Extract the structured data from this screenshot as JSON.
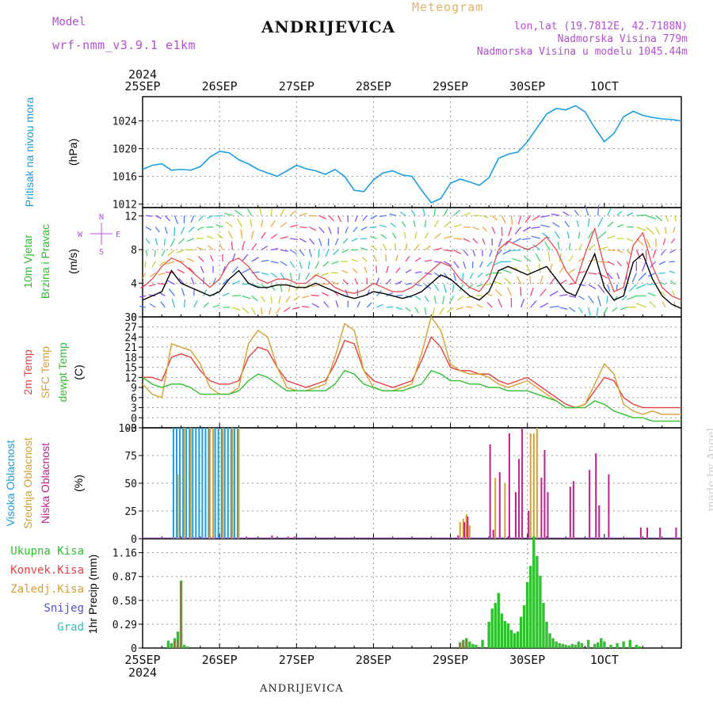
{
  "header": {
    "model_label": "Model",
    "model_name": "wrf-nmm_v3.9.1 e1km",
    "station": "ANDRIJEVICA",
    "meteogram_title": "Meteogram",
    "lonlat": "lon,lat (19.7812E, 42.7188N)",
    "elevation": "Nadmorska Visina 779m",
    "model_elevation": "Nadmorska Visina u modelu 1045.44m"
  },
  "footer": {
    "station": "ANDRIJEVICA",
    "watermark": "made by Angel"
  },
  "time_axis": {
    "year": "2024",
    "ticks": [
      "25SEP",
      "26SEP",
      "27SEP",
      "28SEP",
      "29SEP",
      "30SEP",
      "1OCT"
    ]
  },
  "colors": {
    "pressure": "#1a9fe0",
    "temp2m": "#e84040",
    "sfc": "#d8a030",
    "dewpt": "#30c030",
    "cloud_high": "#1a9fe0",
    "cloud_mid": "#d8a030",
    "cloud_low": "#c02090",
    "rain_total": "#30c030",
    "rain_conv": "#e84040",
    "snow": "#5050d0",
    "hail": "#30c0c0"
  },
  "chart_data": [
    {
      "type": "line",
      "name": "pressure",
      "ylabel_main": "Pritisak na nivou mora",
      "ylabel_unit": "(hPa)",
      "ylim": [
        1011.5,
        1027.5
      ],
      "yticks": [
        1012,
        1016,
        1020,
        1024
      ],
      "x": [
        0,
        3,
        6,
        9,
        12,
        15,
        18,
        21,
        24,
        27,
        30,
        33,
        36,
        39,
        42,
        45,
        48,
        51,
        54,
        57,
        60,
        63,
        66,
        69,
        72,
        75,
        78,
        81,
        84,
        87,
        90,
        93,
        96,
        99,
        102,
        105,
        108,
        111,
        114,
        117,
        120,
        123,
        126,
        129,
        132,
        135,
        138,
        141,
        144,
        147,
        150,
        153,
        156,
        159,
        162,
        165,
        168
      ],
      "series": [
        {
          "values": [
            1017.0,
            1017.6,
            1017.8,
            1016.9,
            1017.0,
            1016.9,
            1017.4,
            1018.8,
            1019.6,
            1019.4,
            1018.4,
            1017.8,
            1017.0,
            1016.5,
            1016.0,
            1016.8,
            1017.6,
            1017.1,
            1016.8,
            1016.3,
            1017.0,
            1016.0,
            1014.0,
            1013.8,
            1015.5,
            1016.5,
            1016.8,
            1016.2,
            1016.0,
            1014.0,
            1012.2,
            1012.8,
            1015.0,
            1015.6,
            1015.2,
            1014.7,
            1015.8,
            1018.6,
            1019.2,
            1019.5,
            1021.0,
            1023.0,
            1025.0,
            1025.8,
            1025.6,
            1026.2,
            1025.3,
            1023.0,
            1021.0,
            1022.2,
            1024.6,
            1025.4,
            1024.8,
            1024.5,
            1024.3,
            1024.2,
            1024.0
          ]
        }
      ]
    },
    {
      "type": "scatter",
      "name": "wind",
      "ylabel_main": "10m Vjetar Brzina i Pravac",
      "ylabel_unit": "(m/s)",
      "compass": [
        "N",
        "E",
        "S",
        "W"
      ],
      "ylim": [
        0,
        13
      ],
      "yticks": [
        0,
        4,
        8,
        12
      ],
      "x": [
        0,
        3,
        6,
        9,
        12,
        15,
        18,
        21,
        24,
        27,
        30,
        33,
        36,
        39,
        42,
        45,
        48,
        51,
        54,
        57,
        60,
        63,
        66,
        69,
        72,
        75,
        78,
        81,
        84,
        87,
        90,
        93,
        96,
        99,
        102,
        105,
        108,
        111,
        114,
        117,
        120,
        123,
        126,
        129,
        132,
        135,
        138,
        141,
        144,
        147,
        150,
        153,
        156,
        159,
        162,
        165,
        168
      ],
      "series": [
        {
          "name": "speed",
          "values": [
            2.0,
            2.5,
            3.0,
            5.5,
            4.0,
            3.5,
            3.0,
            2.5,
            3.0,
            4.5,
            5.5,
            4.0,
            3.5,
            3.5,
            3.8,
            3.8,
            3.5,
            3.5,
            4.0,
            3.5,
            3.0,
            2.5,
            2.2,
            2.5,
            3.0,
            2.8,
            2.5,
            2.2,
            2.5,
            3.0,
            4.0,
            5.0,
            4.5,
            3.5,
            2.5,
            2.0,
            3.0,
            5.5,
            6.0,
            5.5,
            5.0,
            5.5,
            6.0,
            4.5,
            3.0,
            2.5,
            5.0,
            7.5,
            3.5,
            2.0,
            2.5,
            6.5,
            7.5,
            4.5,
            2.5,
            1.5,
            1.0
          ]
        },
        {
          "name": "gust",
          "values": [
            3.5,
            4.5,
            6.0,
            7.0,
            6.5,
            5.5,
            4.5,
            3.5,
            4.5,
            6.5,
            7.0,
            6.0,
            4.5,
            4.0,
            4.5,
            4.5,
            4.0,
            4.0,
            5.0,
            4.5,
            3.5,
            3.0,
            2.8,
            3.2,
            4.0,
            3.5,
            3.0,
            3.0,
            3.5,
            4.5,
            5.5,
            6.5,
            6.0,
            4.5,
            3.5,
            3.0,
            4.5,
            8.0,
            9.0,
            8.5,
            8.0,
            8.5,
            9.5,
            8.0,
            5.5,
            4.0,
            7.5,
            10.5,
            6.0,
            3.0,
            3.5,
            8.5,
            10.0,
            6.0,
            3.5,
            2.5,
            2.0
          ]
        }
      ]
    },
    {
      "type": "line",
      "name": "temperature",
      "ylabel_lines": [
        "2m Temp",
        "SFC Temp",
        "dewpt Temp"
      ],
      "ylabel_unit": "(C)",
      "ylim": [
        -3,
        30
      ],
      "yticks": [
        -3,
        0,
        3,
        6,
        9,
        12,
        15,
        18,
        21,
        24,
        27,
        30
      ],
      "x": [
        0,
        3,
        6,
        9,
        12,
        15,
        18,
        21,
        24,
        27,
        30,
        33,
        36,
        39,
        42,
        45,
        48,
        51,
        54,
        57,
        60,
        63,
        66,
        69,
        72,
        75,
        78,
        81,
        84,
        87,
        90,
        93,
        96,
        99,
        102,
        105,
        108,
        111,
        114,
        117,
        120,
        123,
        126,
        129,
        132,
        135,
        138,
        141,
        144,
        147,
        150,
        153,
        156,
        159,
        162,
        165,
        168
      ],
      "series": [
        {
          "name": "2m Temp",
          "values": [
            12,
            12,
            11,
            18,
            19,
            18,
            14,
            11,
            10,
            10,
            11,
            18,
            21,
            20,
            15,
            11,
            10,
            9,
            10,
            11,
            16,
            23,
            22,
            14,
            11,
            10,
            9,
            10,
            11,
            17,
            24,
            21,
            15,
            14,
            14,
            13,
            13,
            11,
            10,
            11,
            12,
            10,
            8,
            6,
            4,
            3,
            4,
            8,
            12,
            11,
            6,
            4,
            3,
            3,
            3,
            3,
            3
          ]
        },
        {
          "name": "SFC Temp",
          "values": [
            10,
            7,
            6,
            22,
            21,
            20,
            16,
            9,
            7,
            7,
            9,
            22,
            26,
            24,
            15,
            9,
            8,
            8,
            9,
            10,
            18,
            28,
            26,
            14,
            9,
            8,
            8,
            9,
            10,
            19,
            30,
            26,
            16,
            14,
            13,
            13,
            12,
            10,
            9,
            10,
            11,
            9,
            7,
            5,
            3,
            3,
            4,
            10,
            16,
            13,
            4,
            2,
            1,
            2,
            1,
            1,
            1
          ]
        },
        {
          "name": "dewpt Temp",
          "values": [
            12,
            10,
            9,
            10,
            10,
            9,
            7,
            7,
            7,
            7,
            8,
            11,
            13,
            12,
            10,
            8,
            8,
            8,
            8,
            8,
            10,
            14,
            13,
            10,
            9,
            8,
            8,
            8,
            9,
            10,
            14,
            13,
            11,
            11,
            10,
            10,
            9,
            9,
            8,
            8,
            8,
            7,
            6,
            5,
            3,
            3,
            3,
            5,
            4,
            2,
            1,
            0,
            0,
            -1,
            -1,
            -1,
            -1
          ]
        }
      ]
    },
    {
      "type": "bar",
      "name": "clouds",
      "ylabel_lines": [
        "Visoka Oblacnost",
        "Srednja Oblacnost",
        "Niska Oblacnost"
      ],
      "ylabel_unit": "(%)",
      "ylim": [
        0,
        100
      ],
      "yticks": [
        0,
        25,
        50,
        75,
        100
      ],
      "series": [
        {
          "name": "Visoka Oblacnost",
          "x": [
            10,
            11,
            12,
            13,
            14,
            15,
            16,
            17,
            18,
            19,
            20,
            21,
            23,
            24,
            25,
            26,
            27,
            28,
            29,
            30
          ],
          "values": [
            100,
            100,
            100,
            100,
            100,
            100,
            100,
            100,
            100,
            100,
            100,
            100,
            100,
            100,
            100,
            100,
            100,
            100,
            100,
            100
          ]
        },
        {
          "name": "Srednja Oblacnost",
          "x": [
            11,
            13,
            15,
            21,
            22,
            25,
            28,
            30,
            99,
            100,
            101,
            102,
            110,
            113,
            121,
            122,
            123
          ],
          "values": [
            58,
            100,
            100,
            100,
            100,
            100,
            100,
            100,
            15,
            18,
            22,
            12,
            55,
            50,
            95,
            95,
            100
          ]
        },
        {
          "name": "Niska Oblacnost",
          "x": [
            32,
            40,
            45,
            47,
            98,
            100,
            101,
            108,
            109,
            111,
            114,
            116,
            117,
            118,
            120,
            124,
            125,
            126,
            133,
            134,
            139,
            141,
            142,
            145,
            155,
            157,
            161,
            166
          ],
          "values": [
            2,
            3,
            2,
            2,
            3,
            15,
            20,
            85,
            8,
            60,
            95,
            42,
            72,
            100,
            25,
            55,
            80,
            42,
            47,
            52,
            62,
            77,
            30,
            58,
            10,
            10,
            10,
            10
          ]
        }
      ]
    },
    {
      "type": "bar",
      "name": "precipitation",
      "ylabel_lines": [
        "Ukupna Kisa",
        "Konvek.Kisa",
        "Zaledj.Kisa",
        "Snijeg",
        "Grad"
      ],
      "ylabel_unit": "1hr Precip (mm)",
      "ylim": [
        0,
        1.33
      ],
      "yticks": [
        0,
        0.29,
        0.58,
        0.87,
        1.16
      ],
      "series": [
        {
          "name": "Ukupna Kisa",
          "x": [
            8,
            9,
            10,
            11,
            12,
            13,
            14,
            99,
            100,
            101,
            102,
            103,
            104,
            106,
            108,
            109,
            110,
            111,
            112,
            113,
            114,
            115,
            116,
            117,
            118,
            119,
            120,
            121,
            122,
            123,
            124,
            125,
            126,
            127,
            128,
            129,
            130,
            131,
            132,
            133,
            134,
            135,
            136,
            137,
            139,
            141,
            142,
            143,
            144,
            146,
            148,
            150,
            152,
            154,
            155
          ],
          "values": [
            0.09,
            0.06,
            0.12,
            0.2,
            0.82,
            0.04,
            0.02,
            0.07,
            0.1,
            0.12,
            0.08,
            0.05,
            0.04,
            0.1,
            0.32,
            0.48,
            0.55,
            0.67,
            0.42,
            0.33,
            0.3,
            0.22,
            0.18,
            0.2,
            0.38,
            0.52,
            0.8,
            1.0,
            1.36,
            1.12,
            0.88,
            0.55,
            0.32,
            0.18,
            0.12,
            0.08,
            0.06,
            0.05,
            0.04,
            0.03,
            0.05,
            0.04,
            0.08,
            0.06,
            0.1,
            0.05,
            0.07,
            0.12,
            0.08,
            0.04,
            0.06,
            0.08,
            0.1,
            0.04,
            0.02
          ]
        },
        {
          "name": "Konvek.Kisa",
          "x": [
            10,
            11,
            12,
            99,
            100,
            101
          ],
          "values": [
            0.08,
            0.1,
            0.8,
            0.05,
            0.08,
            0.1
          ]
        }
      ]
    }
  ]
}
